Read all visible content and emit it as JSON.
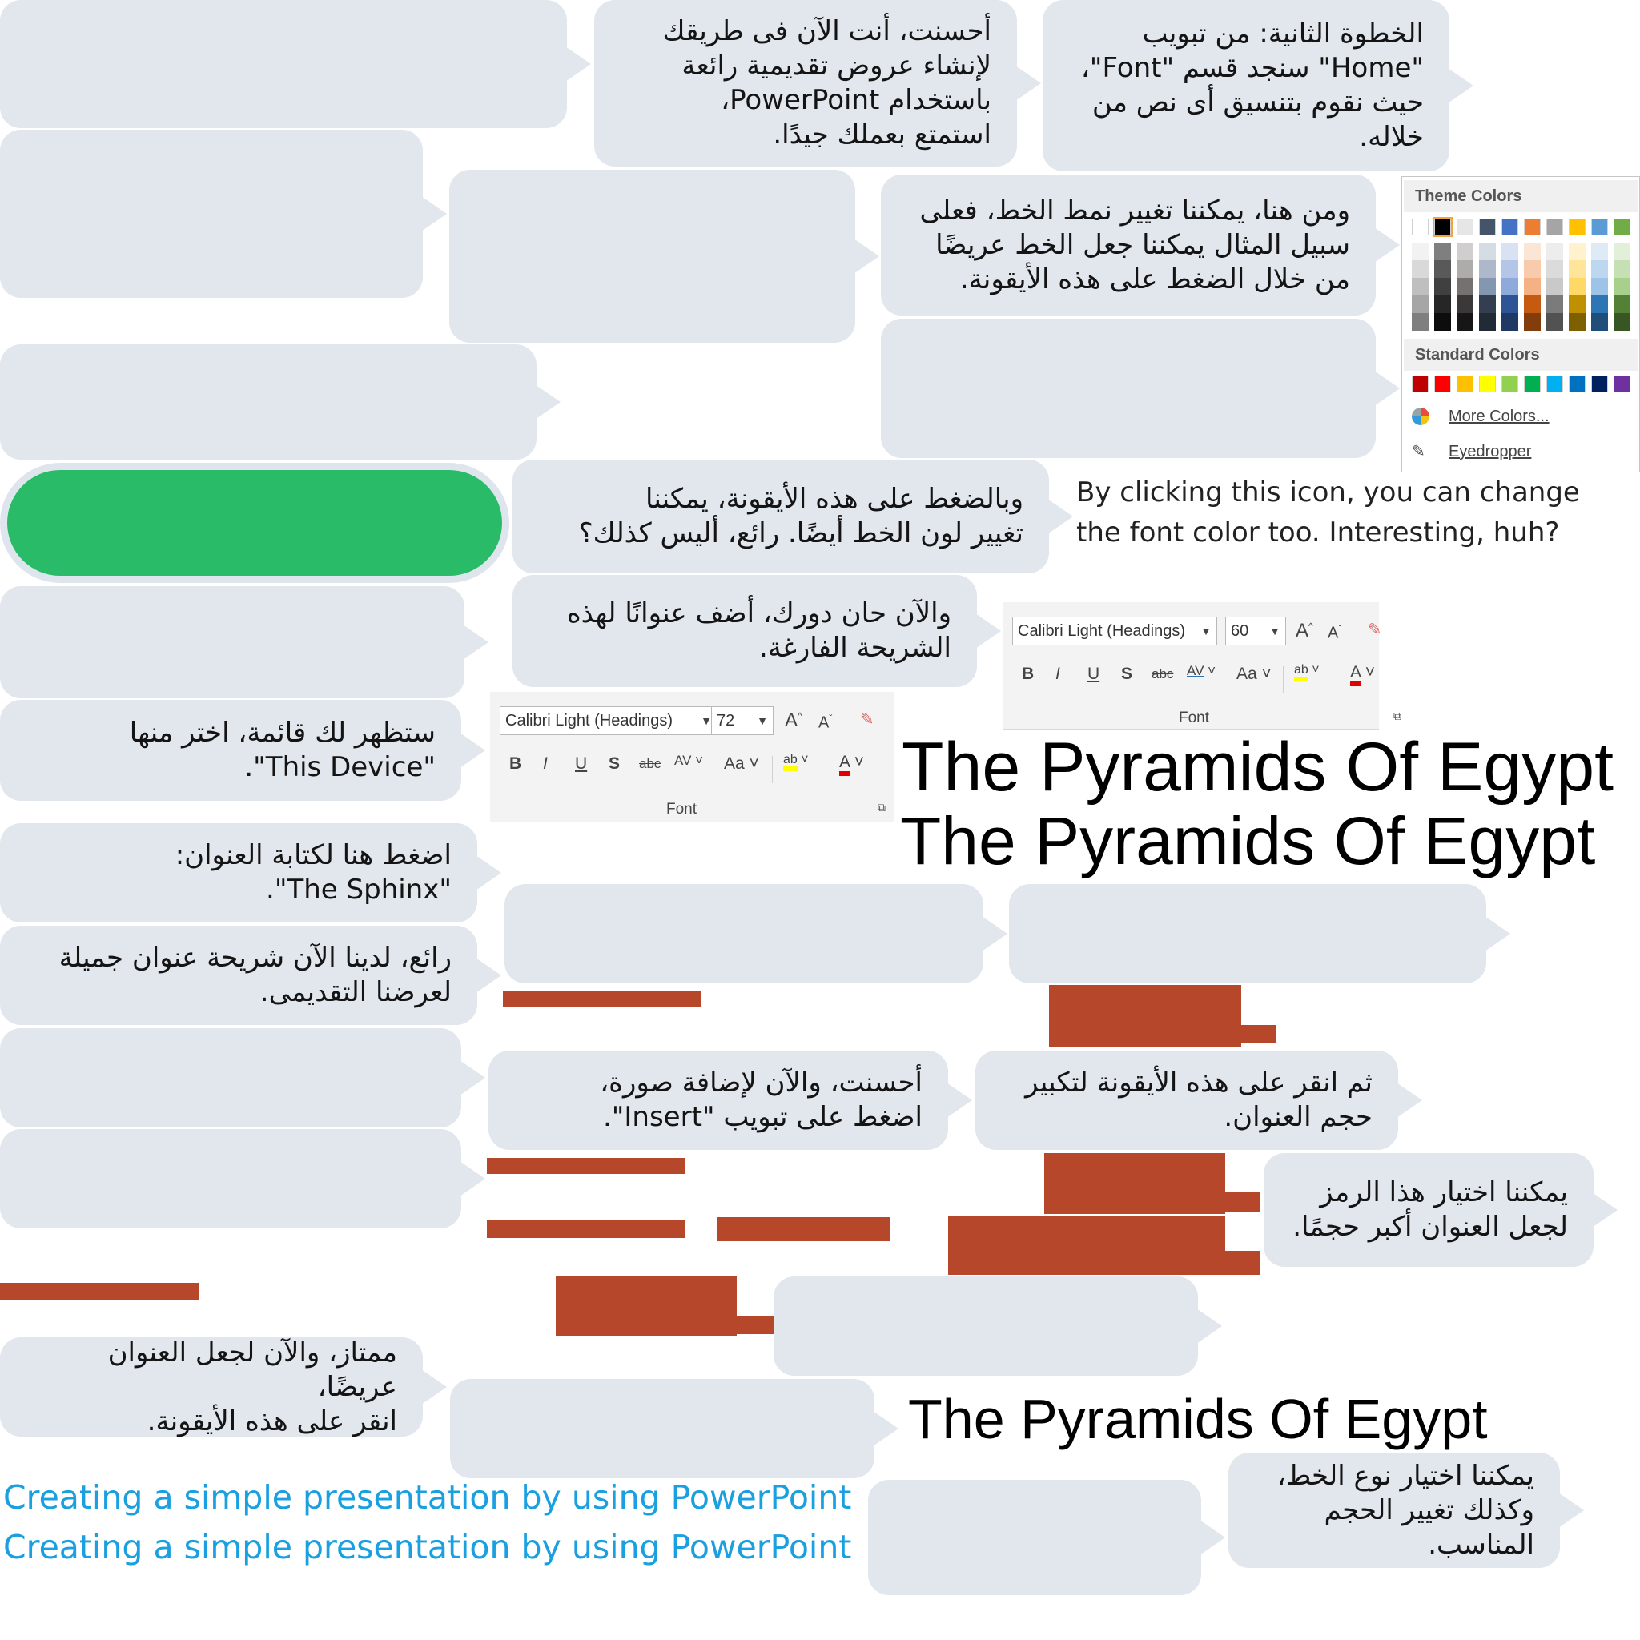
{
  "bubbles": {
    "b_excellent": [
      "أحسنت، أنت الآن فى طريقك",
      "لإنشاء عروض تقديمية رائعة",
      "باستخدام PowerPoint،",
      "استمتع بعملك جيدًا."
    ],
    "b_step2": [
      "الخطوة الثانية: من تبويب",
      "\"Home\" سنجد قسم \"Font\"،",
      "حيث نقوم بتنسيق أى نص من",
      "خلاله."
    ],
    "b_bold": [
      "ومن هنا، يمكننا تغيير نمط الخط، فعلى",
      "سبيل المثال يمكننا جعل الخط عريضًا",
      "من خلال الضغط على هذه الأيقونة."
    ],
    "b_color": [
      "وبالضغط على هذه الأيقونة، يمكننا",
      "تغيير لون الخط أيضًا. رائع، أليس كذلك؟"
    ],
    "b_yourturn": [
      "والآن حان دورك، أضف عنوانًا لهذه",
      "الشريحة الفارغة."
    ],
    "b_menu": [
      "ستظهر لك قائمة، اختر منها",
      "\"This Device\"."
    ],
    "b_sphinx": [
      "اضغط هنا لكتابة العنوان:",
      "\"The Sphinx\"."
    ],
    "b_great": [
      "رائع، لدينا الآن شريحة عنوان جميلة",
      "لعرضنا التقديمى."
    ],
    "b_insert": [
      "أحسنت، والآن لإضافة صورة،",
      "اضغط على تبويب \"Insert\"."
    ],
    "b_enlarge": [
      "ثم انقر على هذه الأيقونة لتكبير",
      "حجم العنوان."
    ],
    "b_symbol": [
      "يمكننا اختيار هذا الرمز",
      "لجعل العنوان أكبر حجمًا."
    ],
    "b_makebold": [
      "ممتاز، والآن لجعل العنوان عريضًا،",
      "انقر على هذه الأيقونة."
    ],
    "b_fonttype": [
      "يمكننا اختيار نوع الخط،",
      "وكذلك تغيير الحجم",
      "المناسب."
    ]
  },
  "english_note": [
    "By clicking this icon, you can change",
    "the font color too. Interesting, huh?"
  ],
  "titles": {
    "pyramids": "The Pyramids Of Egypt",
    "presentation": "Creating a simple presentation by using PowerPoint"
  },
  "ribbon_large": {
    "font_name": "Calibri Light (Headings)",
    "font_size": "72",
    "group_label": "Font"
  },
  "ribbon_small": {
    "font_name": "Calibri Light (Headings)",
    "font_size": "60",
    "group_label": "Font"
  },
  "ribbon_buttons": {
    "bold": "B",
    "italic": "I",
    "underline": "U",
    "shadow": "S",
    "strike": "abc",
    "spacing": "AV",
    "case": "Aa",
    "highlight": "ab",
    "fontcolor": "A",
    "grow": "A",
    "shrink": "A"
  },
  "color_picker": {
    "theme_header": "Theme Colors",
    "standard_header": "Standard Colors",
    "more_colors": "More Colors...",
    "eyedropper": "Eyedropper",
    "theme_top": [
      "#ffffff",
      "#000000",
      "#e7e6e6",
      "#44546a",
      "#4472c4",
      "#ed7d31",
      "#a5a5a5",
      "#ffc000",
      "#5b9bd5",
      "#70ad47"
    ],
    "theme_shades": [
      [
        "#f2f2f2",
        "#d9d9d9",
        "#bfbfbf",
        "#a6a6a6",
        "#7f7f7f"
      ],
      [
        "#7f7f7f",
        "#595959",
        "#404040",
        "#262626",
        "#0d0d0d"
      ],
      [
        "#d0cece",
        "#aeabab",
        "#757171",
        "#3a3838",
        "#171616"
      ],
      [
        "#d6dce4",
        "#adb9ca",
        "#8497b0",
        "#333f4f",
        "#222a35"
      ],
      [
        "#d9e2f3",
        "#b4c6e7",
        "#8eaadb",
        "#2f5496",
        "#1f3864"
      ],
      [
        "#fbe5d5",
        "#f7cbac",
        "#f4b183",
        "#c55a11",
        "#833c0b"
      ],
      [
        "#ededed",
        "#dbdbdb",
        "#c9c9c9",
        "#7b7b7b",
        "#525252"
      ],
      [
        "#fff2cc",
        "#fee599",
        "#ffd966",
        "#bf9000",
        "#7f6000"
      ],
      [
        "#deebf6",
        "#bdd7ee",
        "#9dc3e6",
        "#2e75b5",
        "#1e4e79"
      ],
      [
        "#e2efd9",
        "#c5e0b3",
        "#a8d08d",
        "#538135",
        "#375623"
      ]
    ],
    "standard": [
      "#c00000",
      "#ff0000",
      "#ffc000",
      "#ffff00",
      "#92d050",
      "#00b050",
      "#00b0f0",
      "#0070c0",
      "#002060",
      "#7030a0"
    ]
  }
}
